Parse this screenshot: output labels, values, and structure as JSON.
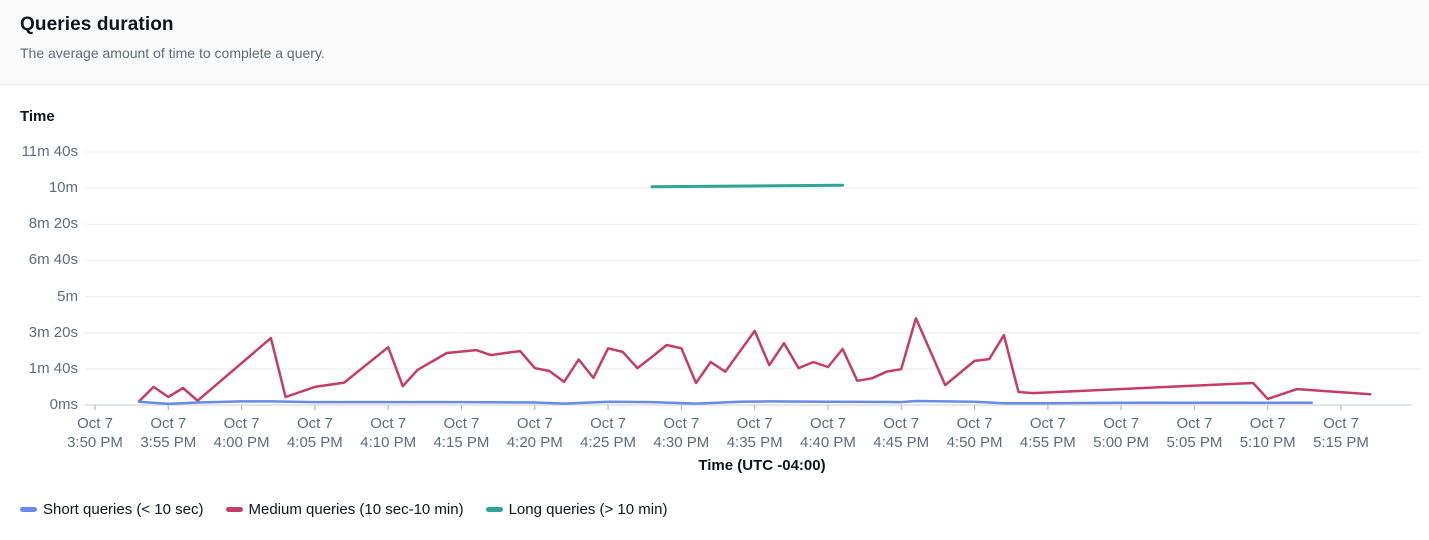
{
  "header": {
    "title": "Queries duration",
    "subtitle": "The average amount of time to complete a query."
  },
  "palette": {
    "short_queries": "#688ae8",
    "medium_queries": "#c33d69",
    "long_queries": "#2ea597",
    "axis_text": "#5f6b7a",
    "gridline": "#ebeef0",
    "axis_line": "#d5dbdb",
    "header_background": "#fafafa"
  },
  "chart_data": {
    "type": "line",
    "title": "Queries duration",
    "subtitle": "The average amount of time to complete a query.",
    "ylabel": "Time",
    "xlabel": "Time (UTC -04:00)",
    "y_unit": "seconds",
    "x_unit": "minutes after Oct 7 3:50 PM",
    "ylim": [
      0,
      700
    ],
    "grid": "horizontal-only",
    "legend_position": "bottom-left",
    "y_ticks": [
      {
        "label": "11m 40s",
        "seconds": 700
      },
      {
        "label": "10m",
        "seconds": 600
      },
      {
        "label": "8m 20s",
        "seconds": 500
      },
      {
        "label": "6m 40s",
        "seconds": 400
      },
      {
        "label": "5m",
        "seconds": 300
      },
      {
        "label": "3m 20s",
        "seconds": 200
      },
      {
        "label": "1m 40s",
        "seconds": 100
      },
      {
        "label": "0ms",
        "seconds": 0
      }
    ],
    "x_ticks": [
      {
        "date": "Oct 7",
        "time": "3:50 PM",
        "minute": 0
      },
      {
        "date": "Oct 7",
        "time": "3:55 PM",
        "minute": 5
      },
      {
        "date": "Oct 7",
        "time": "4:00 PM",
        "minute": 10
      },
      {
        "date": "Oct 7",
        "time": "4:05 PM",
        "minute": 15
      },
      {
        "date": "Oct 7",
        "time": "4:10 PM",
        "minute": 20
      },
      {
        "date": "Oct 7",
        "time": "4:15 PM",
        "minute": 25
      },
      {
        "date": "Oct 7",
        "time": "4:20 PM",
        "minute": 30
      },
      {
        "date": "Oct 7",
        "time": "4:25 PM",
        "minute": 35
      },
      {
        "date": "Oct 7",
        "time": "4:30 PM",
        "minute": 40
      },
      {
        "date": "Oct 7",
        "time": "4:35 PM",
        "minute": 45
      },
      {
        "date": "Oct 7",
        "time": "4:40 PM",
        "minute": 50
      },
      {
        "date": "Oct 7",
        "time": "4:45 PM",
        "minute": 55
      },
      {
        "date": "Oct 7",
        "time": "4:50 PM",
        "minute": 60
      },
      {
        "date": "Oct 7",
        "time": "4:55 PM",
        "minute": 65
      },
      {
        "date": "Oct 7",
        "time": "5:00 PM",
        "minute": 70
      },
      {
        "date": "Oct 7",
        "time": "5:05 PM",
        "minute": 75
      },
      {
        "date": "Oct 7",
        "time": "5:10 PM",
        "minute": 80
      },
      {
        "date": "Oct 7",
        "time": "5:15 PM",
        "minute": 85
      }
    ],
    "series": [
      {
        "name": "Medium queries (10 sec-10 min)",
        "color": "#c33d69",
        "points": [
          [
            3,
            10
          ],
          [
            4,
            50
          ],
          [
            5,
            22
          ],
          [
            6,
            47
          ],
          [
            7,
            12
          ],
          [
            12,
            185
          ],
          [
            13,
            22
          ],
          [
            15,
            50
          ],
          [
            17,
            62
          ],
          [
            20,
            160
          ],
          [
            21,
            52
          ],
          [
            22,
            97
          ],
          [
            24,
            144
          ],
          [
            26,
            152
          ],
          [
            27,
            138
          ],
          [
            28,
            144
          ],
          [
            29,
            149
          ],
          [
            30,
            102
          ],
          [
            31,
            94
          ],
          [
            32,
            64
          ],
          [
            33,
            126
          ],
          [
            34,
            75
          ],
          [
            35,
            157
          ],
          [
            36,
            147
          ],
          [
            37,
            102
          ],
          [
            38,
            133
          ],
          [
            39,
            166
          ],
          [
            40,
            157
          ],
          [
            41,
            61
          ],
          [
            42,
            119
          ],
          [
            43,
            92
          ],
          [
            45,
            205
          ],
          [
            46,
            110
          ],
          [
            47,
            171
          ],
          [
            48,
            102
          ],
          [
            49,
            119
          ],
          [
            50,
            105
          ],
          [
            51,
            155
          ],
          [
            52,
            67
          ],
          [
            53,
            74
          ],
          [
            54,
            92
          ],
          [
            55,
            99
          ],
          [
            56,
            240
          ],
          [
            58,
            55
          ],
          [
            60,
            122
          ],
          [
            61,
            127
          ],
          [
            62,
            193
          ],
          [
            63,
            36
          ],
          [
            64,
            33
          ],
          [
            79,
            61
          ],
          [
            80,
            17
          ],
          [
            82,
            44
          ],
          [
            87,
            30
          ]
        ]
      },
      {
        "name": "Short queries (< 10 sec)",
        "color": "#688ae8",
        "points": [
          [
            3,
            9
          ],
          [
            5,
            3
          ],
          [
            7,
            7
          ],
          [
            10,
            10
          ],
          [
            12,
            10
          ],
          [
            15,
            8
          ],
          [
            20,
            8
          ],
          [
            25,
            8
          ],
          [
            30,
            7
          ],
          [
            32,
            4
          ],
          [
            35,
            9
          ],
          [
            38,
            8
          ],
          [
            41,
            4
          ],
          [
            44,
            9
          ],
          [
            46,
            10
          ],
          [
            50,
            9
          ],
          [
            55,
            8
          ],
          [
            56,
            11
          ],
          [
            60,
            9
          ],
          [
            62,
            5
          ],
          [
            65,
            5
          ],
          [
            70,
            6
          ],
          [
            75,
            6
          ],
          [
            80,
            6
          ],
          [
            83,
            6
          ]
        ]
      },
      {
        "name": "Long queries (> 10 min)",
        "color": "#2ea597",
        "points": [
          [
            38,
            604
          ],
          [
            51,
            608
          ]
        ]
      }
    ],
    "legend_order": [
      "Short queries (< 10 sec)",
      "Medium queries (10 sec-10 min)",
      "Long queries (> 10 min)"
    ]
  }
}
